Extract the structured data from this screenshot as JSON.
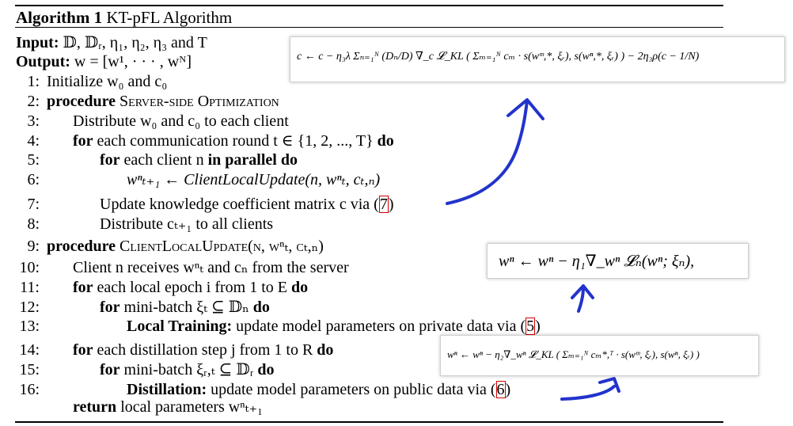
{
  "algorithm": {
    "label": "Algorithm 1",
    "title": "KT-pFL Algorithm",
    "input_label": "Input:",
    "input_value": "𝔻, 𝔻ᵣ, η₁, η₂, η₃ and T",
    "output_label": "Output:",
    "output_value": "w = [w¹, · · · , wᴺ]",
    "lines": [
      {
        "num": "1:",
        "text": "Initialize w₀ and c₀"
      },
      {
        "num": "2:",
        "kw": "procedure",
        "text": "Server-side Optimization"
      },
      {
        "num": "3:",
        "text": "Distribute w₀ and c₀ to each client"
      },
      {
        "num": "4:",
        "kw": "for",
        "text": "each communication round t ∈ {1, 2, ..., T}",
        "kw2": "do"
      },
      {
        "num": "5:",
        "kw": "for",
        "text": "each client n",
        "kw2": "in parallel do"
      },
      {
        "num": "6:",
        "text": "wⁿₜ₊₁ ← ClientLocalUpdate(n, wⁿₜ, cₜ,ₙ)"
      },
      {
        "num": "7:",
        "text": "Update knowledge coefficient matrix c via (",
        "ref": "7",
        "after": ")"
      },
      {
        "num": "8:",
        "text": "Distribute cₜ₊₁ to all clients"
      },
      {
        "num": "9:",
        "kw": "procedure",
        "text": "ClientLocalUpdate(n, wⁿₜ, cₜ,ₙ)"
      },
      {
        "num": "10:",
        "text": "Client n receives wⁿₜ and cₙ from the server"
      },
      {
        "num": "11:",
        "kw": "for",
        "text": "each local epoch i from 1 to E",
        "kw2": "do"
      },
      {
        "num": "12:",
        "kw": "for",
        "text": "mini-batch ξₜ ⊆ 𝔻ₙ",
        "kw2": "do"
      },
      {
        "num": "13:",
        "kw": "Local Training:",
        "text": "update model parameters on private data via (",
        "ref": "5",
        "after": ")"
      },
      {
        "num": "14:",
        "kw": "for",
        "text": "each distillation step j from 1 to R",
        "kw2": "do"
      },
      {
        "num": "15:",
        "kw": "for",
        "text": "mini-batch ξᵣ,ₜ ⊆ 𝔻ᵣ",
        "kw2": "do"
      },
      {
        "num": "16:",
        "kw": "Distillation:",
        "text": "update model parameters on public data via (",
        "ref": "6",
        "after": ")"
      },
      {
        "num": "",
        "kw": "return",
        "text": "local parameters wⁿₜ₊₁"
      }
    ]
  },
  "annotations": {
    "eq_c_update": "c ← c − η₃λ Σₙ₌₁ᴺ (Dₙ/D) ∇_c 𝓛_KL ( Σₘ₌₁ᴺ cₘ · s(wᵐ,*, ξᵣ), s(wⁿ,*, ξᵣ) ) − 2η₃ρ(c − 1/N)",
    "eq_local_training": "wⁿ ← wⁿ − η₁∇_wⁿ 𝓛ₙ(wⁿ; ξₙ),",
    "eq_distillation": "wⁿ ← wⁿ − η₂∇_wⁿ 𝓛_KL ( Σₘ₌₁ᴺ cₘ*,ᵀ · s(wᵐ, ξᵣ), s(wⁿ, ξᵣ) )",
    "pen_color": "#2233cc",
    "ref_color": "#d40000"
  }
}
